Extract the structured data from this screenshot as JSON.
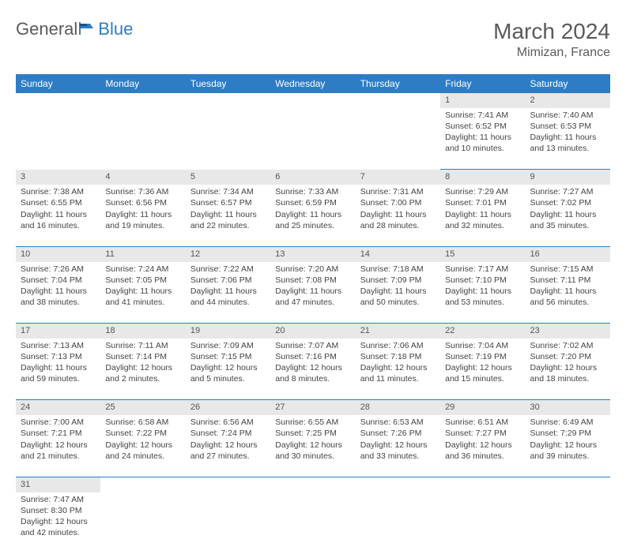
{
  "logo": {
    "general": "General",
    "blue": "Blue"
  },
  "title": "March 2024",
  "location": "Mimizan, France",
  "colors": {
    "header_bg": "#2e7cc4",
    "header_text": "#ffffff",
    "daynum_bg": "#e8e8e8",
    "border": "#2e7cc4"
  },
  "weekdays": [
    "Sunday",
    "Monday",
    "Tuesday",
    "Wednesday",
    "Thursday",
    "Friday",
    "Saturday"
  ],
  "weeks": [
    {
      "nums": [
        "",
        "",
        "",
        "",
        "",
        "1",
        "2"
      ],
      "cells": [
        null,
        null,
        null,
        null,
        null,
        {
          "sunrise": "Sunrise: 7:41 AM",
          "sunset": "Sunset: 6:52 PM",
          "daylight": "Daylight: 11 hours and 10 minutes."
        },
        {
          "sunrise": "Sunrise: 7:40 AM",
          "sunset": "Sunset: 6:53 PM",
          "daylight": "Daylight: 11 hours and 13 minutes."
        }
      ]
    },
    {
      "nums": [
        "3",
        "4",
        "5",
        "6",
        "7",
        "8",
        "9"
      ],
      "cells": [
        {
          "sunrise": "Sunrise: 7:38 AM",
          "sunset": "Sunset: 6:55 PM",
          "daylight": "Daylight: 11 hours and 16 minutes."
        },
        {
          "sunrise": "Sunrise: 7:36 AM",
          "sunset": "Sunset: 6:56 PM",
          "daylight": "Daylight: 11 hours and 19 minutes."
        },
        {
          "sunrise": "Sunrise: 7:34 AM",
          "sunset": "Sunset: 6:57 PM",
          "daylight": "Daylight: 11 hours and 22 minutes."
        },
        {
          "sunrise": "Sunrise: 7:33 AM",
          "sunset": "Sunset: 6:59 PM",
          "daylight": "Daylight: 11 hours and 25 minutes."
        },
        {
          "sunrise": "Sunrise: 7:31 AM",
          "sunset": "Sunset: 7:00 PM",
          "daylight": "Daylight: 11 hours and 28 minutes."
        },
        {
          "sunrise": "Sunrise: 7:29 AM",
          "sunset": "Sunset: 7:01 PM",
          "daylight": "Daylight: 11 hours and 32 minutes."
        },
        {
          "sunrise": "Sunrise: 7:27 AM",
          "sunset": "Sunset: 7:02 PM",
          "daylight": "Daylight: 11 hours and 35 minutes."
        }
      ]
    },
    {
      "nums": [
        "10",
        "11",
        "12",
        "13",
        "14",
        "15",
        "16"
      ],
      "cells": [
        {
          "sunrise": "Sunrise: 7:26 AM",
          "sunset": "Sunset: 7:04 PM",
          "daylight": "Daylight: 11 hours and 38 minutes."
        },
        {
          "sunrise": "Sunrise: 7:24 AM",
          "sunset": "Sunset: 7:05 PM",
          "daylight": "Daylight: 11 hours and 41 minutes."
        },
        {
          "sunrise": "Sunrise: 7:22 AM",
          "sunset": "Sunset: 7:06 PM",
          "daylight": "Daylight: 11 hours and 44 minutes."
        },
        {
          "sunrise": "Sunrise: 7:20 AM",
          "sunset": "Sunset: 7:08 PM",
          "daylight": "Daylight: 11 hours and 47 minutes."
        },
        {
          "sunrise": "Sunrise: 7:18 AM",
          "sunset": "Sunset: 7:09 PM",
          "daylight": "Daylight: 11 hours and 50 minutes."
        },
        {
          "sunrise": "Sunrise: 7:17 AM",
          "sunset": "Sunset: 7:10 PM",
          "daylight": "Daylight: 11 hours and 53 minutes."
        },
        {
          "sunrise": "Sunrise: 7:15 AM",
          "sunset": "Sunset: 7:11 PM",
          "daylight": "Daylight: 11 hours and 56 minutes."
        }
      ]
    },
    {
      "nums": [
        "17",
        "18",
        "19",
        "20",
        "21",
        "22",
        "23"
      ],
      "cells": [
        {
          "sunrise": "Sunrise: 7:13 AM",
          "sunset": "Sunset: 7:13 PM",
          "daylight": "Daylight: 11 hours and 59 minutes."
        },
        {
          "sunrise": "Sunrise: 7:11 AM",
          "sunset": "Sunset: 7:14 PM",
          "daylight": "Daylight: 12 hours and 2 minutes."
        },
        {
          "sunrise": "Sunrise: 7:09 AM",
          "sunset": "Sunset: 7:15 PM",
          "daylight": "Daylight: 12 hours and 5 minutes."
        },
        {
          "sunrise": "Sunrise: 7:07 AM",
          "sunset": "Sunset: 7:16 PM",
          "daylight": "Daylight: 12 hours and 8 minutes."
        },
        {
          "sunrise": "Sunrise: 7:06 AM",
          "sunset": "Sunset: 7:18 PM",
          "daylight": "Daylight: 12 hours and 11 minutes."
        },
        {
          "sunrise": "Sunrise: 7:04 AM",
          "sunset": "Sunset: 7:19 PM",
          "daylight": "Daylight: 12 hours and 15 minutes."
        },
        {
          "sunrise": "Sunrise: 7:02 AM",
          "sunset": "Sunset: 7:20 PM",
          "daylight": "Daylight: 12 hours and 18 minutes."
        }
      ]
    },
    {
      "nums": [
        "24",
        "25",
        "26",
        "27",
        "28",
        "29",
        "30"
      ],
      "cells": [
        {
          "sunrise": "Sunrise: 7:00 AM",
          "sunset": "Sunset: 7:21 PM",
          "daylight": "Daylight: 12 hours and 21 minutes."
        },
        {
          "sunrise": "Sunrise: 6:58 AM",
          "sunset": "Sunset: 7:22 PM",
          "daylight": "Daylight: 12 hours and 24 minutes."
        },
        {
          "sunrise": "Sunrise: 6:56 AM",
          "sunset": "Sunset: 7:24 PM",
          "daylight": "Daylight: 12 hours and 27 minutes."
        },
        {
          "sunrise": "Sunrise: 6:55 AM",
          "sunset": "Sunset: 7:25 PM",
          "daylight": "Daylight: 12 hours and 30 minutes."
        },
        {
          "sunrise": "Sunrise: 6:53 AM",
          "sunset": "Sunset: 7:26 PM",
          "daylight": "Daylight: 12 hours and 33 minutes."
        },
        {
          "sunrise": "Sunrise: 6:51 AM",
          "sunset": "Sunset: 7:27 PM",
          "daylight": "Daylight: 12 hours and 36 minutes."
        },
        {
          "sunrise": "Sunrise: 6:49 AM",
          "sunset": "Sunset: 7:29 PM",
          "daylight": "Daylight: 12 hours and 39 minutes."
        }
      ]
    },
    {
      "nums": [
        "31",
        "",
        "",
        "",
        "",
        "",
        ""
      ],
      "cells": [
        {
          "sunrise": "Sunrise: 7:47 AM",
          "sunset": "Sunset: 8:30 PM",
          "daylight": "Daylight: 12 hours and 42 minutes."
        },
        null,
        null,
        null,
        null,
        null,
        null
      ]
    }
  ]
}
